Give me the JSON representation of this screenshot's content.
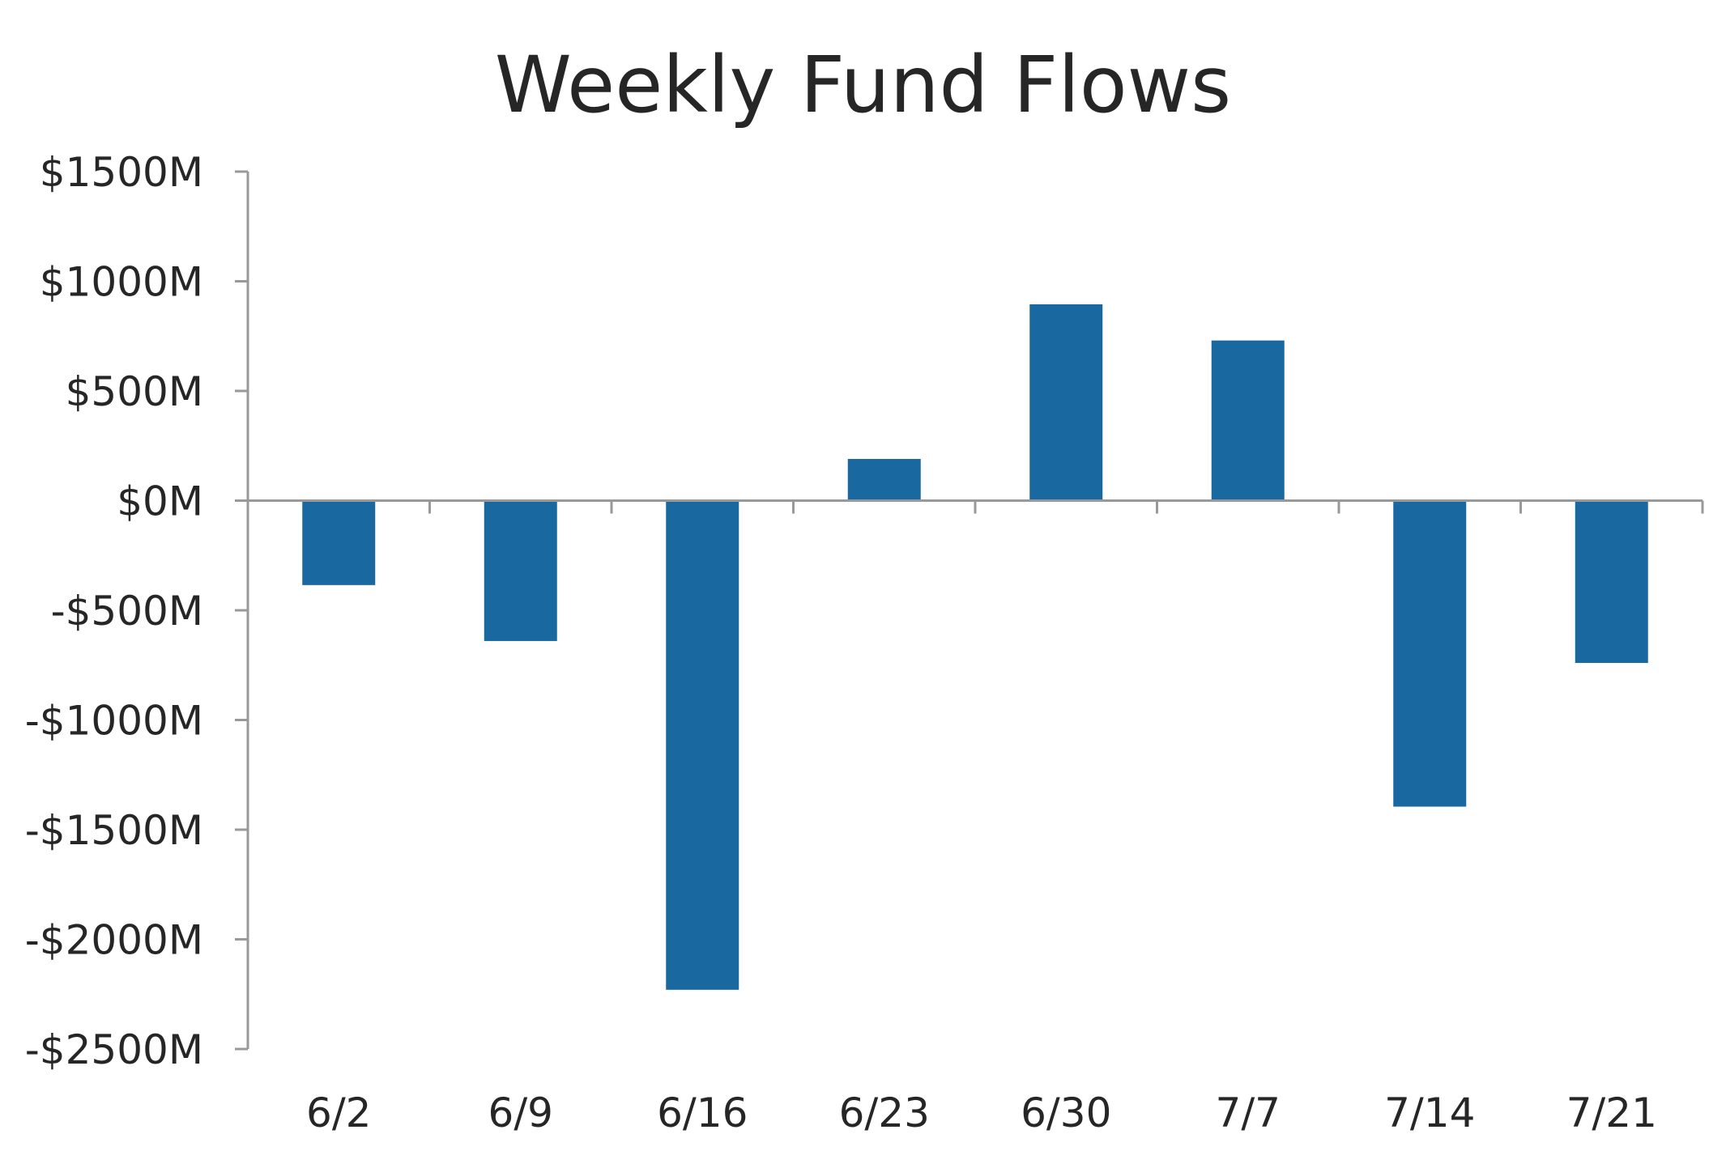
{
  "chart_data": {
    "type": "bar",
    "title": "Weekly Fund Flows",
    "xlabel": "",
    "ylabel": "",
    "categories": [
      "6/2",
      "6/9",
      "6/16",
      "6/23",
      "6/30",
      "7/7",
      "7/14",
      "7/21"
    ],
    "values": [
      -385,
      -640,
      -2230,
      190,
      895,
      730,
      -1395,
      -740
    ],
    "ylim": [
      -2500,
      1500
    ],
    "yticks": [
      1500,
      1000,
      500,
      0,
      -500,
      -1000,
      -1500,
      -2000,
      -2500
    ],
    "ytick_labels": [
      "$1500M",
      "$1000M",
      "$500M",
      "$0M",
      "-$500M",
      "-$1000M",
      "-$1500M",
      "-$2000M",
      "-$2500M"
    ],
    "grid": false,
    "legend": "none",
    "colors": {
      "bar": "#1a68a0",
      "axis": "#999999",
      "text": "#262626"
    }
  }
}
